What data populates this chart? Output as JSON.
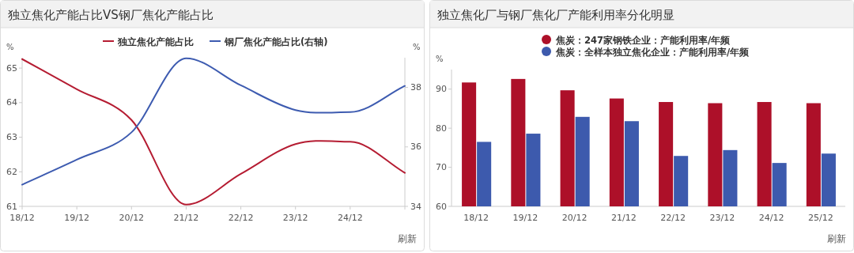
{
  "chart_data": [
    {
      "type": "line",
      "title": "独立焦化产能占比VS钢厂焦化产能占比",
      "categories": [
        "18/12",
        "19/12",
        "20/12",
        "21/12",
        "22/12",
        "23/12",
        "24/12",
        null
      ],
      "series": [
        {
          "name": "独立焦化产能占比",
          "color": "#b51c32",
          "values": [
            65.26,
            64.39,
            63.5,
            61.05,
            61.94,
            62.8,
            62.87,
            61.97
          ]
        },
        {
          "name": "钢厂焦化产能占比(右轴)",
          "color": "#3d5bb0",
          "axis": "y2",
          "values": [
            34.73,
            35.57,
            36.49,
            38.98,
            38.07,
            37.24,
            37.17,
            38.05
          ]
        }
      ],
      "ylabel": "%",
      "y2label": "%",
      "ylim": [
        61,
        65.3
      ],
      "yticks": [
        61,
        62,
        63,
        64,
        65
      ],
      "y2lim": [
        34,
        39
      ],
      "y2ticks": [
        34,
        36,
        38
      ],
      "grid": false,
      "legend": "top",
      "marker": "none",
      "line_style": "solid",
      "annotations": [
        "刷新"
      ]
    },
    {
      "type": "bar",
      "title": "独立焦化厂与钢厂焦化厂产能利用率分化明显",
      "categories": [
        "18/12",
        "19/12",
        "20/12",
        "21/12",
        "22/12",
        "23/12",
        "24/12",
        "25/12"
      ],
      "series": [
        {
          "name": "焦炭：247家钢铁企业：产能利用率/年频",
          "color": "#ad1029",
          "values": [
            91.7,
            92.6,
            89.7,
            87.6,
            86.7,
            86.4,
            86.7,
            86.4
          ]
        },
        {
          "name": "焦炭：全样本独立焦化企业：产能利用率/年频",
          "color": "#3d5aad",
          "values": [
            76.5,
            78.6,
            82.9,
            81.8,
            72.9,
            74.4,
            71.1,
            73.5
          ]
        }
      ],
      "ylabel": "%",
      "ylim": [
        60,
        95
      ],
      "yticks": [
        60,
        70,
        80,
        90
      ],
      "grid": false,
      "legend": "top",
      "annotations": [
        "刷新"
      ]
    }
  ]
}
